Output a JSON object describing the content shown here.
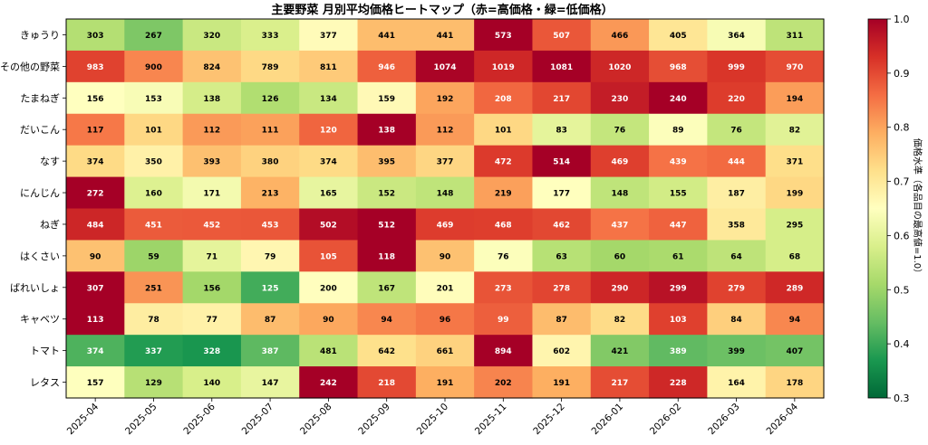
{
  "chart_data": {
    "type": "heatmap",
    "title": "主要野菜 月別平均価格ヒートマップ（赤=高価格・緑=低価格）",
    "columns": [
      "2025-04",
      "2025-05",
      "2025-06",
      "2025-07",
      "2025-08",
      "2025-09",
      "2025-10",
      "2025-11",
      "2025-12",
      "2026-01",
      "2026-02",
      "2026-03",
      "2026-04"
    ],
    "rows": [
      "きゅうり",
      "その他の野菜",
      "たまねぎ",
      "だいこん",
      "なす",
      "にんじん",
      "ねぎ",
      "はくさい",
      "ばれいしょ",
      "キャベツ",
      "トマト",
      "レタス"
    ],
    "values": [
      [
        303,
        267,
        320,
        333,
        377,
        441,
        441,
        573,
        507,
        466,
        405,
        364,
        311
      ],
      [
        983,
        900,
        824,
        789,
        811,
        946,
        1074,
        1019,
        1081,
        1020,
        968,
        999,
        970
      ],
      [
        156,
        153,
        138,
        126,
        134,
        159,
        192,
        208,
        217,
        230,
        240,
        220,
        194
      ],
      [
        117,
        101,
        112,
        111,
        120,
        138,
        112,
        101,
        83,
        76,
        89,
        76,
        82
      ],
      [
        374,
        350,
        393,
        380,
        374,
        395,
        377,
        472,
        514,
        469,
        439,
        444,
        371
      ],
      [
        272,
        160,
        171,
        213,
        165,
        152,
        148,
        219,
        177,
        148,
        155,
        187,
        199
      ],
      [
        484,
        451,
        452,
        453,
        502,
        512,
        469,
        468,
        462,
        437,
        447,
        358,
        295
      ],
      [
        90,
        59,
        71,
        79,
        105,
        118,
        90,
        76,
        63,
        60,
        61,
        64,
        68
      ],
      [
        307,
        251,
        156,
        125,
        200,
        167,
        201,
        273,
        278,
        290,
        299,
        279,
        289
      ],
      [
        113,
        78,
        77,
        87,
        90,
        94,
        96,
        99,
        87,
        82,
        103,
        84,
        94
      ],
      [
        374,
        337,
        328,
        387,
        481,
        642,
        661,
        894,
        602,
        421,
        389,
        399,
        407
      ],
      [
        157,
        129,
        140,
        147,
        242,
        218,
        191,
        202,
        191,
        217,
        228,
        164,
        178
      ]
    ],
    "normalization": "row_max",
    "colormap": "RdYlGn_r",
    "colorbar": {
      "label": "価格水準（各品目の最高値=1.0）",
      "min": 0.3,
      "max": 1.0,
      "ticks": [
        "0.3",
        "0.4",
        "0.5",
        "0.6",
        "0.7",
        "0.8",
        "0.9",
        "1.0"
      ]
    }
  }
}
